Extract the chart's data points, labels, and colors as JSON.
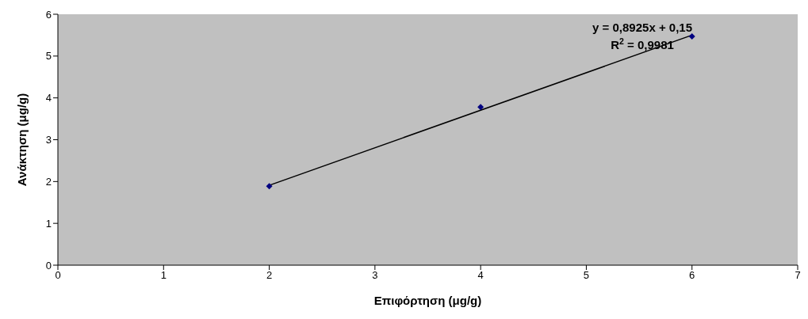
{
  "chart_data": {
    "type": "scatter",
    "xlabel": "Επιφόρτηση (μg/g)",
    "ylabel": "Ανάκτηση (μg/g)",
    "xlim": [
      0,
      7
    ],
    "xticks": [
      0,
      1,
      2,
      3,
      4,
      5,
      6,
      7
    ],
    "ylim": [
      0,
      6
    ],
    "yticks": [
      0,
      1,
      2,
      3,
      4,
      5,
      6
    ],
    "grid": false,
    "marker": "diamond",
    "series": [
      {
        "color": "#000080",
        "x": [
          2,
          4,
          6
        ],
        "values": [
          1.89,
          3.78,
          5.47
        ]
      },
      {
        "type": "line",
        "color": "#000000",
        "x": [
          2,
          6
        ],
        "values": [
          1.91,
          5.5
        ],
        "marker": "none",
        "line_style": "solid"
      }
    ],
    "annotations": [
      "y = 0,8925x + 0,15",
      "R$^{2}$ = 0,9981"
    ]
  }
}
